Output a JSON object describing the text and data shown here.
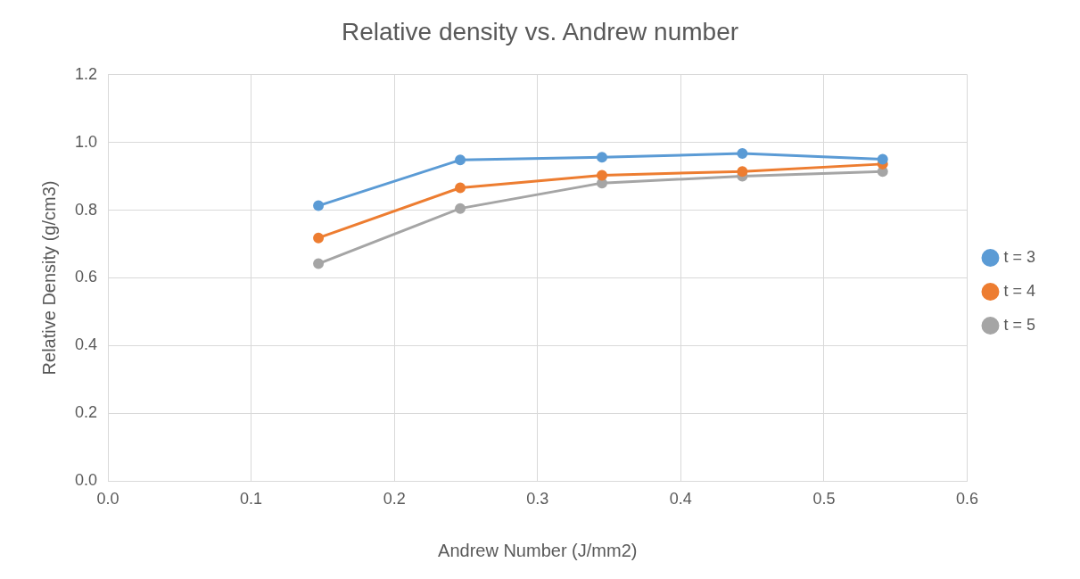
{
  "chart_data": {
    "type": "line",
    "title": "Relative density vs. Andrew number",
    "xlabel": "Andrew Number (J/mm2)",
    "ylabel": "Relative Density (g/cm3)",
    "x": [
      0.147,
      0.246,
      0.345,
      0.443,
      0.541
    ],
    "series": [
      {
        "name": "t = 3",
        "color": "#5b9bd5",
        "values": [
          0.813,
          0.948,
          0.956,
          0.967,
          0.95
        ]
      },
      {
        "name": "t = 4",
        "color": "#ed7d31",
        "values": [
          0.718,
          0.866,
          0.903,
          0.914,
          0.936
        ]
      },
      {
        "name": "t = 5",
        "color": "#a5a5a5",
        "values": [
          0.642,
          0.805,
          0.88,
          0.9,
          0.914
        ]
      }
    ],
    "xlim": [
      0,
      0.6
    ],
    "xticks": [
      {
        "value": 0,
        "label": "0.0"
      },
      0.1,
      0.2,
      0.3,
      0.4,
      0.5,
      0.6
    ],
    "ylim": [
      0,
      1.2
    ],
    "yticks": [
      {
        "value": 0,
        "label": "0.0"
      },
      0.2,
      0.4,
      0.6,
      0.8,
      {
        "value": 1,
        "label": "1.0"
      },
      1.2
    ],
    "grid": true,
    "legend": "right",
    "marker": "circle",
    "line_style": "solid"
  }
}
